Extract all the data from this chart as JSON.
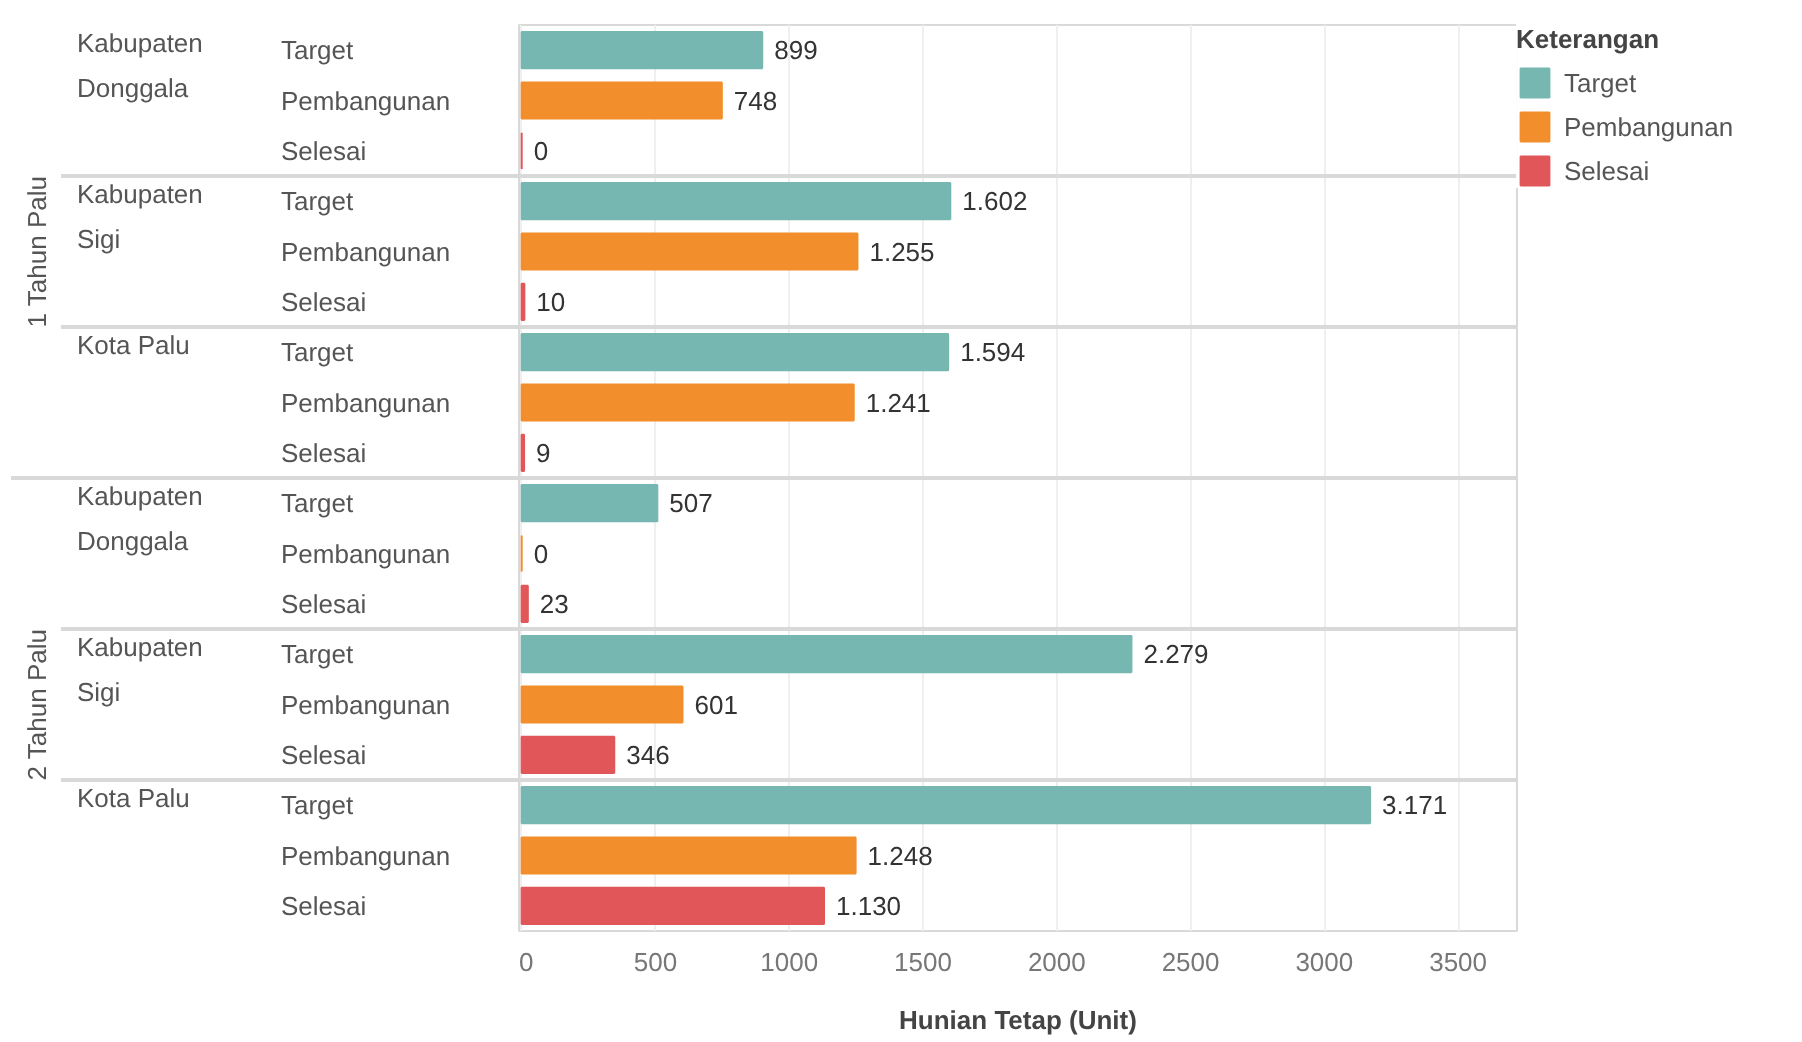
{
  "chart_data": {
    "type": "bar",
    "orientation": "horizontal",
    "xlabel": "Hunian Tetap (Unit)",
    "legend_title": "Keterangan",
    "legend": "top right",
    "grid": "x",
    "xlim": [
      -10,
      3720
    ],
    "xticks": [
      0,
      500,
      1000,
      1500,
      2000,
      2500,
      3000,
      3500
    ],
    "categories": [
      "Target",
      "Pembangunan",
      "Selesai",
      "Target",
      "Pembangunan",
      "Selesai",
      "Target",
      "Pembangunan",
      "Selesai",
      "Target",
      "Pembangunan",
      "Selesai",
      "Target",
      "Pembangunan",
      "Selesai",
      "Target",
      "Pembangunan",
      "Selesai"
    ],
    "annotations": [
      "Kabupaten\nDonggala",
      "Kabupaten\nSigi",
      "Kota Palu",
      "Kabupaten\nDonggala",
      "Kabupaten\nSigi",
      "Kota Palu",
      "1 Tahun Palu",
      "2 Tahun Palu"
    ],
    "series": [
      {
        "name": "Target",
        "color": "#76b7b2",
        "values": [
          899,
          null,
          null,
          1602,
          null,
          null,
          1594,
          null,
          null,
          507,
          null,
          null,
          2279,
          null,
          null,
          3171,
          null,
          null
        ],
        "value_labels": [
          "899",
          null,
          null,
          "1.602",
          null,
          null,
          "1.594",
          null,
          null,
          "507",
          null,
          null,
          "2.279",
          null,
          null,
          "3.171",
          null,
          null
        ]
      },
      {
        "name": "Pembangunan",
        "color": "#f28e2b",
        "values": [
          null,
          748,
          null,
          null,
          1255,
          null,
          null,
          1241,
          null,
          null,
          0,
          null,
          null,
          601,
          null,
          null,
          1248,
          null
        ],
        "value_labels": [
          null,
          "748",
          null,
          null,
          "1.255",
          null,
          null,
          "1.241",
          null,
          null,
          "0",
          null,
          null,
          "601",
          null,
          null,
          "1.248",
          null
        ]
      },
      {
        "name": "Selesai",
        "color": "#e15759",
        "values": [
          null,
          null,
          0,
          null,
          null,
          10,
          null,
          null,
          9,
          null,
          null,
          23,
          null,
          null,
          346,
          null,
          null,
          1130
        ],
        "value_labels": [
          null,
          null,
          "0",
          null,
          null,
          "10",
          null,
          null,
          "9",
          null,
          null,
          "23",
          null,
          null,
          "346",
          null,
          null,
          "1.130"
        ]
      }
    ]
  }
}
